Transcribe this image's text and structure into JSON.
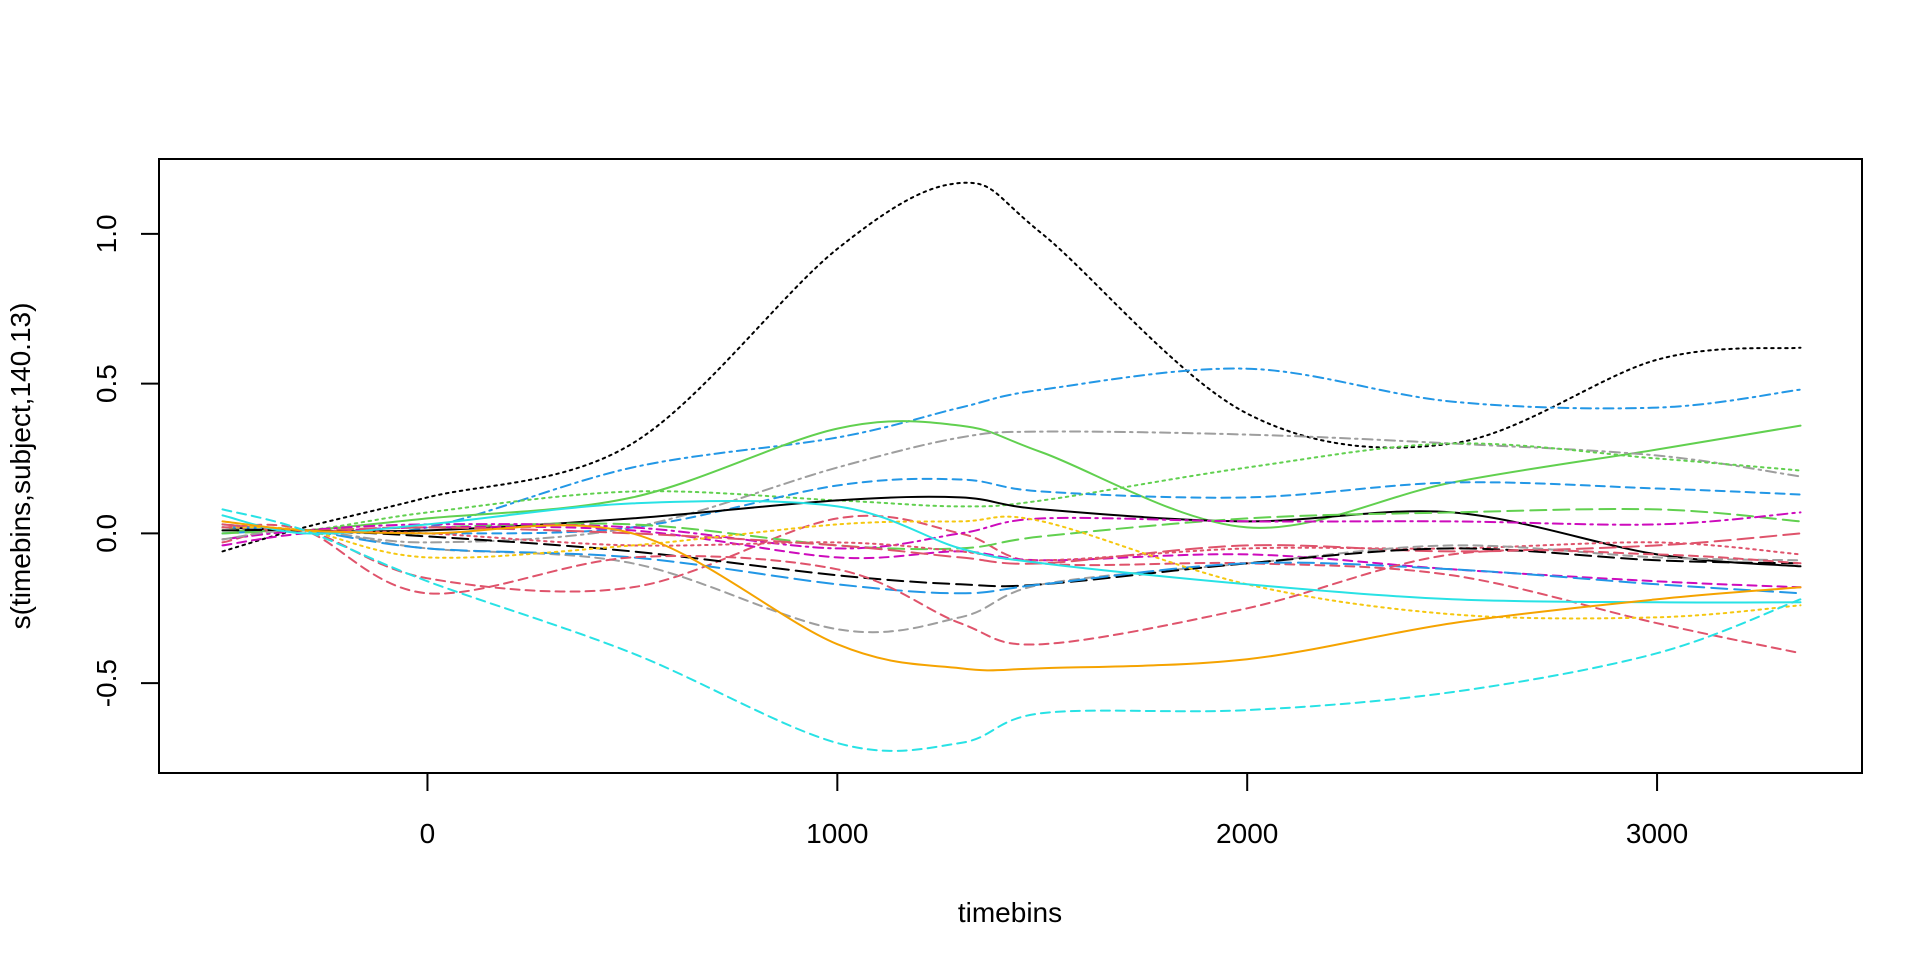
{
  "chart_data": {
    "type": "line",
    "title": "",
    "xlabel": "timebins",
    "ylabel": "s(timebins,subject,140.13)",
    "xlim": [
      -655,
      3500
    ],
    "ylim": [
      -0.8,
      1.25
    ],
    "x_ticks": [
      0,
      1000,
      2000,
      3000
    ],
    "x_tick_labels": [
      "0",
      "1000",
      "2000",
      "3000"
    ],
    "y_ticks": [
      -0.5,
      0.0,
      0.5,
      1.0
    ],
    "y_tick_labels": [
      "-0.5",
      "0.0",
      "0.5",
      "1.0"
    ],
    "grid": false,
    "legend": "none",
    "x": [
      -500,
      -300,
      0,
      500,
      1000,
      1300,
      1500,
      2000,
      2500,
      3000,
      3350
    ],
    "series": [
      {
        "color": "#000000",
        "dash": "dotted",
        "values": [
          -0.06,
          0.02,
          0.12,
          0.3,
          0.95,
          1.17,
          1.0,
          0.4,
          0.3,
          0.58,
          0.62
        ]
      },
      {
        "color": "#2297E6",
        "dash": "dotdash",
        "values": [
          0.03,
          0.01,
          0.02,
          0.22,
          0.32,
          0.42,
          0.48,
          0.55,
          0.44,
          0.42,
          0.48
        ]
      },
      {
        "color": "#61D04F",
        "dash": "solid",
        "values": [
          0.01,
          0.01,
          0.05,
          0.12,
          0.35,
          0.36,
          0.27,
          0.02,
          0.17,
          0.28,
          0.36
        ]
      },
      {
        "color": "#9E9E9E",
        "dash": "dotdash",
        "values": [
          -0.02,
          0.01,
          -0.03,
          0.02,
          0.22,
          0.32,
          0.34,
          0.33,
          0.3,
          0.26,
          0.19
        ]
      },
      {
        "color": "#61D04F",
        "dash": "dotted",
        "values": [
          0.02,
          0.01,
          0.07,
          0.14,
          0.11,
          0.09,
          0.11,
          0.22,
          0.3,
          0.25,
          0.21
        ]
      },
      {
        "color": "#2297E6",
        "dash": "dashed",
        "values": [
          0.0,
          0.01,
          0.0,
          0.02,
          0.16,
          0.18,
          0.14,
          0.12,
          0.17,
          0.15,
          0.13
        ]
      },
      {
        "color": "#000000",
        "dash": "solid",
        "values": [
          0.02,
          0.01,
          0.01,
          0.05,
          0.11,
          0.12,
          0.08,
          0.04,
          0.07,
          -0.07,
          -0.11
        ]
      },
      {
        "color": "#DF536B",
        "dash": "dashed",
        "values": [
          -0.03,
          0.01,
          -0.15,
          -0.18,
          0.05,
          0.0,
          -0.1,
          -0.1,
          -0.14,
          -0.3,
          -0.4
        ]
      },
      {
        "color": "#61D04F",
        "dash": "longdash",
        "values": [
          0.0,
          0.01,
          0.02,
          0.03,
          -0.04,
          -0.05,
          -0.01,
          0.05,
          0.07,
          0.08,
          0.04
        ]
      },
      {
        "color": "#CD0BBC",
        "dash": "dotdash",
        "values": [
          -0.02,
          0.01,
          0.03,
          0.02,
          -0.05,
          0.0,
          0.05,
          0.04,
          0.04,
          0.03,
          0.07
        ]
      },
      {
        "color": "#CD0BBC",
        "dash": "dashed",
        "values": [
          -0.04,
          0.0,
          0.02,
          0.01,
          -0.08,
          -0.06,
          -0.09,
          -0.07,
          -0.12,
          -0.16,
          -0.18
        ]
      },
      {
        "color": "#DF536B",
        "dash": "longdash",
        "values": [
          0.03,
          0.01,
          0.02,
          0.0,
          -0.04,
          -0.08,
          -0.1,
          -0.04,
          -0.06,
          -0.04,
          0.0
        ]
      },
      {
        "color": "#DF536B",
        "dash": "dotted",
        "values": [
          0.02,
          0.01,
          0.0,
          -0.04,
          -0.03,
          -0.06,
          -0.09,
          -0.05,
          -0.05,
          -0.03,
          -0.07
        ]
      },
      {
        "color": "#9E9E9E",
        "dash": "dashed",
        "values": [
          -0.02,
          0.01,
          -0.05,
          -0.1,
          -0.32,
          -0.28,
          -0.17,
          -0.1,
          -0.04,
          -0.08,
          -0.09
        ]
      },
      {
        "color": "#000000",
        "dash": "longdash",
        "values": [
          0.01,
          0.01,
          -0.01,
          -0.06,
          -0.14,
          -0.17,
          -0.17,
          -0.1,
          -0.05,
          -0.09,
          -0.1
        ]
      },
      {
        "color": "#2297E6",
        "dash": "longdash",
        "values": [
          0.02,
          0.01,
          -0.05,
          -0.08,
          -0.17,
          -0.2,
          -0.17,
          -0.1,
          -0.12,
          -0.17,
          -0.2
        ]
      },
      {
        "color": "#F5C710",
        "dash": "dotted",
        "values": [
          0.02,
          0.01,
          -0.08,
          -0.04,
          0.03,
          0.04,
          0.04,
          -0.17,
          -0.27,
          -0.28,
          -0.24
        ]
      },
      {
        "color": "#DF536B",
        "dash": "dashed",
        "values": [
          0.02,
          0.01,
          -0.2,
          -0.08,
          -0.12,
          -0.3,
          -0.37,
          -0.25,
          -0.07,
          -0.07,
          -0.1
        ]
      },
      {
        "color": "#28E2E5",
        "dash": "solid",
        "values": [
          0.06,
          0.0,
          0.03,
          0.1,
          0.09,
          -0.05,
          -0.1,
          -0.17,
          -0.22,
          -0.23,
          -0.23
        ]
      },
      {
        "color": "#F5A300",
        "dash": "solid",
        "values": [
          0.04,
          0.01,
          0.0,
          0.0,
          -0.37,
          -0.45,
          -0.45,
          -0.42,
          -0.3,
          -0.22,
          -0.18
        ]
      },
      {
        "color": "#28E2E5",
        "dash": "dashed",
        "values": [
          0.08,
          0.01,
          -0.16,
          -0.4,
          -0.7,
          -0.7,
          -0.6,
          -0.59,
          -0.53,
          -0.4,
          -0.22
        ]
      }
    ]
  }
}
